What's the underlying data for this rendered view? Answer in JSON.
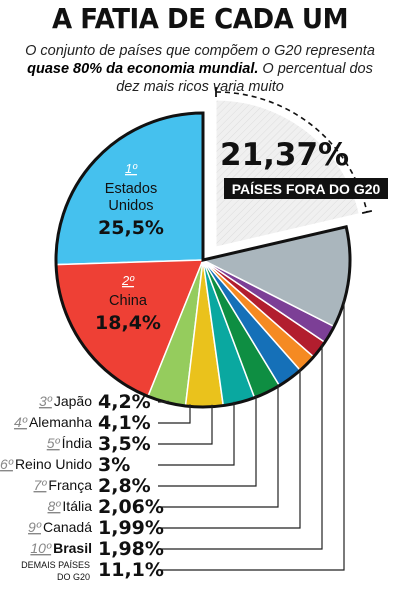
{
  "header": {
    "title": "A FATIA DE CADA UM",
    "subtitle_pre": "O conjunto de países que compõem o G20 representa",
    "subtitle_bold": "quase 80% da economia mundial.",
    "subtitle_post": "O percentual dos dez mais ricos varia muito"
  },
  "chart_data": {
    "type": "pie",
    "title": "A FATIA DE CADA UM",
    "outside": {
      "label": "PAÍSES FORA DO G20",
      "value": 21.37,
      "display": "21,37%",
      "color": "#f0f0f0"
    },
    "slices": [
      {
        "rank": "1º",
        "name": "Estados Unidos",
        "value": 25.5,
        "display": "25,5%",
        "color": "#45c1ee"
      },
      {
        "rank": "2º",
        "name": "China",
        "value": 18.4,
        "display": "18,4%",
        "color": "#ee4035"
      },
      {
        "rank": "3º",
        "name": "Japão",
        "value": 4.2,
        "display": "4,2%",
        "color": "#95cc5d"
      },
      {
        "rank": "4º",
        "name": "Alemanha",
        "value": 4.1,
        "display": "4,1%",
        "color": "#eac21c"
      },
      {
        "rank": "5º",
        "name": "Índia",
        "value": 3.5,
        "display": "3,5%",
        "color": "#0aa8a0"
      },
      {
        "rank": "6º",
        "name": "Reino Unido",
        "value": 3,
        "display": "3%",
        "color": "#0e8e42"
      },
      {
        "rank": "7º",
        "name": "França",
        "value": 2.8,
        "display": "2,8%",
        "color": "#1570b8"
      },
      {
        "rank": "8º",
        "name": "Itália",
        "value": 2.06,
        "display": "2,06%",
        "color": "#f58a22"
      },
      {
        "rank": "9º",
        "name": "Canadá",
        "value": 1.99,
        "display": "1,99%",
        "color": "#b21e2e"
      },
      {
        "rank": "10º",
        "name": "Brasil",
        "value": 1.98,
        "display": "1,98%",
        "color": "#7c3f96"
      },
      {
        "rank": "",
        "name": "DEMAIS PAÍSES DO G20",
        "value": 11.1,
        "display": "11,1%",
        "color": "#aab6bd"
      }
    ]
  }
}
